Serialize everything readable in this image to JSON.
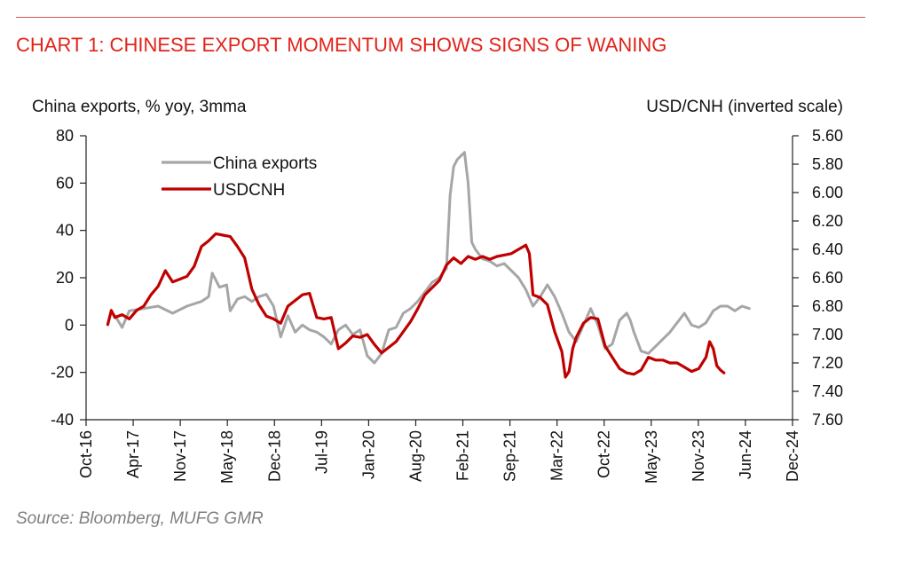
{
  "chart_data": {
    "type": "line",
    "title": "CHART 1: CHINESE EXPORT MOMENTUM SHOWS SIGNS OF WANING",
    "ylabel_left": "China exports, % yoy, 3mma",
    "ylabel_right": "USD/CNH (inverted scale)",
    "ylim_left": [
      -40,
      80
    ],
    "ylim_right": [
      7.6,
      5.6
    ],
    "left_ticks": [
      "80",
      "60",
      "40",
      "20",
      "0",
      "-20",
      "-40"
    ],
    "right_ticks": [
      "5.60",
      "5.80",
      "6.00",
      "6.20",
      "6.40",
      "6.60",
      "6.80",
      "7.00",
      "7.20",
      "7.40",
      "7.60"
    ],
    "x_ticks": [
      "Oct-16",
      "Apr-17",
      "Nov-17",
      "May-18",
      "Dec-18",
      "Jul-19",
      "Jan-20",
      "Aug-20",
      "Feb-21",
      "Sep-21",
      "Mar-22",
      "Oct-22",
      "May-23",
      "Nov-23",
      "Jun-24",
      "Dec-24"
    ],
    "x_range_months": [
      0,
      98
    ],
    "legend": [
      "China exports",
      "USDCNH"
    ],
    "series": [
      {
        "name": "China exports",
        "color": "#a6a6a6",
        "axis": "left",
        "points": [
          [
            4,
            4
          ],
          [
            5,
            -1
          ],
          [
            6,
            6
          ],
          [
            8,
            7
          ],
          [
            10,
            8
          ],
          [
            12,
            5
          ],
          [
            14,
            8
          ],
          [
            16,
            10
          ],
          [
            17,
            12
          ],
          [
            17.5,
            22
          ],
          [
            18.5,
            16
          ],
          [
            19.5,
            17
          ],
          [
            20,
            6
          ],
          [
            21,
            11
          ],
          [
            22,
            12
          ],
          [
            23,
            10
          ],
          [
            24,
            12
          ],
          [
            25,
            13
          ],
          [
            26,
            8
          ],
          [
            27,
            -5
          ],
          [
            28,
            4
          ],
          [
            29,
            -3
          ],
          [
            30,
            0
          ],
          [
            31,
            -2
          ],
          [
            32,
            -3
          ],
          [
            33,
            -5
          ],
          [
            34,
            -8
          ],
          [
            35,
            -2
          ],
          [
            36,
            0
          ],
          [
            37,
            -4
          ],
          [
            38,
            -2
          ],
          [
            39,
            -13
          ],
          [
            40,
            -16
          ],
          [
            41,
            -12
          ],
          [
            42,
            -2
          ],
          [
            43,
            -1
          ],
          [
            44,
            5
          ],
          [
            45,
            7
          ],
          [
            46,
            10
          ],
          [
            47,
            14
          ],
          [
            48,
            18
          ],
          [
            49,
            20
          ],
          [
            50,
            24
          ],
          [
            50.5,
            55
          ],
          [
            51,
            67
          ],
          [
            51.5,
            70
          ],
          [
            52.5,
            73
          ],
          [
            53,
            60
          ],
          [
            53.5,
            35
          ],
          [
            54,
            32
          ],
          [
            55,
            28
          ],
          [
            56,
            27
          ],
          [
            57,
            25
          ],
          [
            58,
            26
          ],
          [
            59,
            23
          ],
          [
            60,
            20
          ],
          [
            61,
            15
          ],
          [
            62,
            8
          ],
          [
            63,
            12
          ],
          [
            64,
            17
          ],
          [
            65,
            12
          ],
          [
            66,
            5
          ],
          [
            67,
            -3
          ],
          [
            68,
            -7
          ],
          [
            69,
            0
          ],
          [
            70,
            7
          ],
          [
            71,
            0
          ],
          [
            72,
            -10
          ],
          [
            73,
            -8
          ],
          [
            74,
            2
          ],
          [
            75,
            5
          ],
          [
            75.5,
            2
          ],
          [
            76,
            -3
          ],
          [
            77,
            -11
          ],
          [
            78,
            -12
          ],
          [
            79,
            -9
          ],
          [
            80,
            -6
          ],
          [
            81,
            -3
          ],
          [
            82,
            1
          ],
          [
            83,
            5
          ],
          [
            84,
            0
          ],
          [
            85,
            -1
          ],
          [
            86,
            1
          ],
          [
            87,
            6
          ],
          [
            88,
            8
          ],
          [
            89,
            8
          ],
          [
            90,
            6
          ],
          [
            91,
            8
          ],
          [
            92,
            7
          ]
        ]
      },
      {
        "name": "USDCNH",
        "color": "#c00000",
        "axis": "right",
        "points": [
          [
            3,
            6.93
          ],
          [
            3.5,
            6.83
          ],
          [
            4,
            6.88
          ],
          [
            5,
            6.86
          ],
          [
            6,
            6.89
          ],
          [
            7,
            6.83
          ],
          [
            8,
            6.8
          ],
          [
            9,
            6.72
          ],
          [
            10,
            6.66
          ],
          [
            11,
            6.55
          ],
          [
            12,
            6.63
          ],
          [
            13,
            6.61
          ],
          [
            14,
            6.59
          ],
          [
            15,
            6.52
          ],
          [
            16,
            6.38
          ],
          [
            17,
            6.34
          ],
          [
            18,
            6.29
          ],
          [
            19,
            6.3
          ],
          [
            20,
            6.31
          ],
          [
            21,
            6.38
          ],
          [
            22,
            6.46
          ],
          [
            23,
            6.68
          ],
          [
            24,
            6.79
          ],
          [
            25,
            6.87
          ],
          [
            26,
            6.89
          ],
          [
            27,
            6.92
          ],
          [
            28,
            6.8
          ],
          [
            29,
            6.76
          ],
          [
            30,
            6.72
          ],
          [
            31,
            6.71
          ],
          [
            32,
            6.88
          ],
          [
            33,
            6.89
          ],
          [
            34,
            6.88
          ],
          [
            35,
            7.1
          ],
          [
            36,
            7.06
          ],
          [
            37,
            7.01
          ],
          [
            38,
            7.02
          ],
          [
            39,
            7.0
          ],
          [
            40,
            7.07
          ],
          [
            41,
            7.13
          ],
          [
            42,
            7.09
          ],
          [
            43,
            7.05
          ],
          [
            44,
            6.98
          ],
          [
            45,
            6.91
          ],
          [
            46,
            6.82
          ],
          [
            47,
            6.72
          ],
          [
            48,
            6.67
          ],
          [
            49,
            6.62
          ],
          [
            50,
            6.51
          ],
          [
            51,
            6.46
          ],
          [
            52,
            6.5
          ],
          [
            53,
            6.45
          ],
          [
            54,
            6.47
          ],
          [
            55,
            6.45
          ],
          [
            56,
            6.47
          ],
          [
            57,
            6.45
          ],
          [
            58,
            6.44
          ],
          [
            59,
            6.43
          ],
          [
            60,
            6.4
          ],
          [
            61,
            6.37
          ],
          [
            61.5,
            6.43
          ],
          [
            62,
            6.72
          ],
          [
            63,
            6.74
          ],
          [
            64,
            6.79
          ],
          [
            65,
            6.98
          ],
          [
            66,
            7.12
          ],
          [
            66.5,
            7.3
          ],
          [
            67,
            7.26
          ],
          [
            67.5,
            7.1
          ],
          [
            68,
            7.02
          ],
          [
            69,
            6.92
          ],
          [
            70,
            6.88
          ],
          [
            71,
            6.89
          ],
          [
            72,
            7.08
          ],
          [
            73,
            7.16
          ],
          [
            74,
            7.24
          ],
          [
            75,
            7.27
          ],
          [
            76,
            7.28
          ],
          [
            77,
            7.25
          ],
          [
            78,
            7.16
          ],
          [
            79,
            7.18
          ],
          [
            80,
            7.18
          ],
          [
            81,
            7.2
          ],
          [
            82,
            7.2
          ],
          [
            83,
            7.23
          ],
          [
            84,
            7.26
          ],
          [
            85,
            7.24
          ],
          [
            86,
            7.16
          ],
          [
            86.5,
            7.05
          ],
          [
            87,
            7.1
          ],
          [
            87.5,
            7.22
          ],
          [
            88,
            7.25
          ],
          [
            88.5,
            7.27
          ]
        ]
      }
    ]
  },
  "source": "Source: Bloomberg, MUFG GMR"
}
